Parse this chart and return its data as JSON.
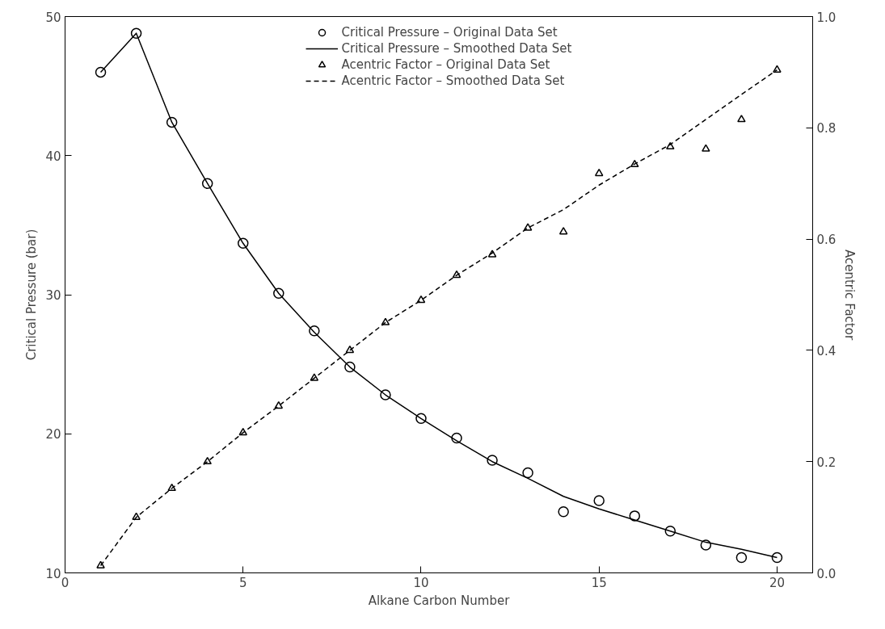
{
  "chart_data": {
    "type": "line",
    "xlabel": "Alkane Carbon Number",
    "ylabel": "Critical Pressure (bar)",
    "y2label": "Acentric Factor",
    "x": [
      1,
      2,
      3,
      4,
      5,
      6,
      7,
      8,
      9,
      10,
      11,
      12,
      13,
      14,
      15,
      16,
      17,
      18,
      19,
      20
    ],
    "series": [
      {
        "name": "Critical Pressure – Original Data Set",
        "type": "scatter",
        "marker": "circle",
        "color": "#000000",
        "values": [
          46.0,
          48.8,
          42.4,
          38.0,
          33.7,
          30.1,
          27.4,
          24.8,
          22.8,
          21.1,
          19.7,
          18.1,
          17.2,
          14.4,
          15.2,
          14.1,
          13.0,
          12.0,
          11.1,
          11.1
        ]
      },
      {
        "name": "Critical Pressure – Smoothed Data Set",
        "line_style": "solid",
        "color": "#000000",
        "values": [
          46.0,
          48.8,
          42.4,
          38.0,
          33.7,
          30.1,
          27.3,
          24.8,
          22.8,
          21.1,
          19.5,
          18.0,
          16.8,
          15.5,
          14.6,
          13.8,
          13.0,
          12.2,
          11.7,
          11.1
        ]
      },
      {
        "name": "Acentric Factor – Original Data Set",
        "type": "scatter",
        "marker": "triangle",
        "axis": "y2",
        "color": "#000000",
        "values": [
          0.013,
          0.1,
          0.152,
          0.2,
          0.252,
          0.3,
          0.35,
          0.4,
          0.45,
          0.49,
          0.535,
          0.572,
          0.62,
          0.613,
          0.718,
          0.734,
          0.766,
          0.762,
          0.815,
          0.904
        ]
      },
      {
        "name": "Acentric Factor – Smoothed Data Set",
        "line_style": "dashed",
        "axis": "y2",
        "color": "#000000",
        "values": [
          0.013,
          0.1,
          0.152,
          0.2,
          0.252,
          0.3,
          0.35,
          0.4,
          0.45,
          0.49,
          0.535,
          0.575,
          0.62,
          0.653,
          0.697,
          0.735,
          0.77,
          0.815,
          0.86,
          0.904
        ]
      }
    ],
    "xlim": [
      0,
      21
    ],
    "xticks": [
      0,
      5,
      10,
      15,
      20
    ],
    "ylim": [
      10,
      50
    ],
    "yticks": [
      10,
      20,
      30,
      40,
      50
    ],
    "y2lim": [
      0,
      1
    ],
    "y2ticks": [
      {
        "value": 0,
        "label": "0.0"
      },
      {
        "value": 0.2,
        "label": "0.2"
      },
      {
        "value": 0.4,
        "label": "0.4"
      },
      {
        "value": 0.6,
        "label": "0.6"
      },
      {
        "value": 0.8,
        "label": "0.8"
      },
      {
        "value": 1,
        "label": "1.0"
      }
    ],
    "grid": false,
    "legend": "top"
  }
}
